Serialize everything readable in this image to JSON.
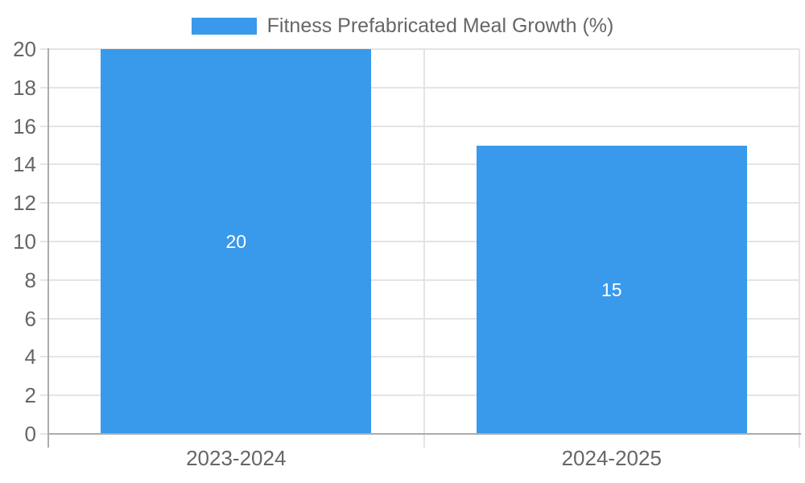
{
  "chart_data": {
    "type": "bar",
    "legend_label": "Fitness Prefabricated Meal Growth (%)",
    "legend_position": "top",
    "categories": [
      "2023-2024",
      "2024-2025"
    ],
    "series": [
      {
        "name": "Fitness Prefabricated Meal Growth (%)",
        "values": [
          20,
          15
        ]
      }
    ],
    "bar_value_labels": [
      "20",
      "15"
    ],
    "ylim": [
      0,
      20
    ],
    "yticks": [
      0,
      2,
      4,
      6,
      8,
      10,
      12,
      14,
      16,
      18,
      20
    ],
    "grid": true,
    "colors": {
      "bar": "#3999EB",
      "grid": "#E4E4E4",
      "axis": "#ACACAC",
      "tick_text": "#666666",
      "bar_label_text": "#FFFFFF",
      "background": "#FFFFFF"
    }
  }
}
